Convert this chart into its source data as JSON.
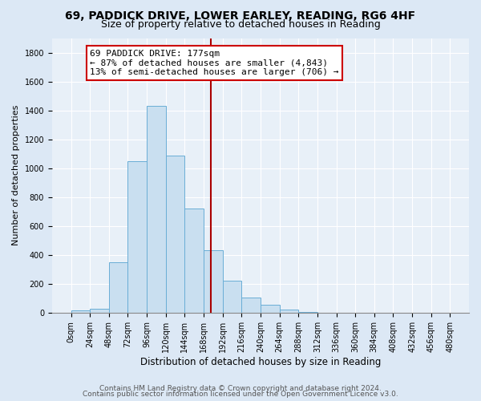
{
  "title1": "69, PADDICK DRIVE, LOWER EARLEY, READING, RG6 4HF",
  "title2": "Size of property relative to detached houses in Reading",
  "xlabel": "Distribution of detached houses by size in Reading",
  "ylabel": "Number of detached properties",
  "footer1": "Contains HM Land Registry data © Crown copyright and database right 2024.",
  "footer2": "Contains public sector information licensed under the Open Government Licence v3.0.",
  "bin_edges": [
    0,
    24,
    48,
    72,
    96,
    120,
    144,
    168,
    192,
    216,
    240,
    264,
    288,
    312,
    336,
    360,
    384,
    408,
    432,
    456,
    480
  ],
  "bar_heights": [
    15,
    30,
    350,
    1050,
    1430,
    1090,
    720,
    430,
    220,
    105,
    55,
    20,
    5,
    2,
    1,
    0,
    0,
    0,
    0,
    0
  ],
  "bar_color": "#c9dff0",
  "bar_edge_color": "#6aaed6",
  "property_size": 177,
  "vline_color": "#aa0000",
  "annotation_text": "69 PADDICK DRIVE: 177sqm\n← 87% of detached houses are smaller (4,843)\n13% of semi-detached houses are larger (706) →",
  "annotation_box_color": "#ffffff",
  "annotation_box_edge_color": "#cc0000",
  "ylim": [
    0,
    1900
  ],
  "yticks": [
    0,
    200,
    400,
    600,
    800,
    1000,
    1200,
    1400,
    1600,
    1800
  ],
  "background_color": "#dce8f5",
  "plot_bg_color": "#e8f0f8",
  "grid_color": "#ffffff",
  "title1_fontsize": 10,
  "title2_fontsize": 9,
  "xlabel_fontsize": 8.5,
  "ylabel_fontsize": 8,
  "tick_fontsize": 7,
  "footer_fontsize": 6.5,
  "annotation_fontsize": 8
}
